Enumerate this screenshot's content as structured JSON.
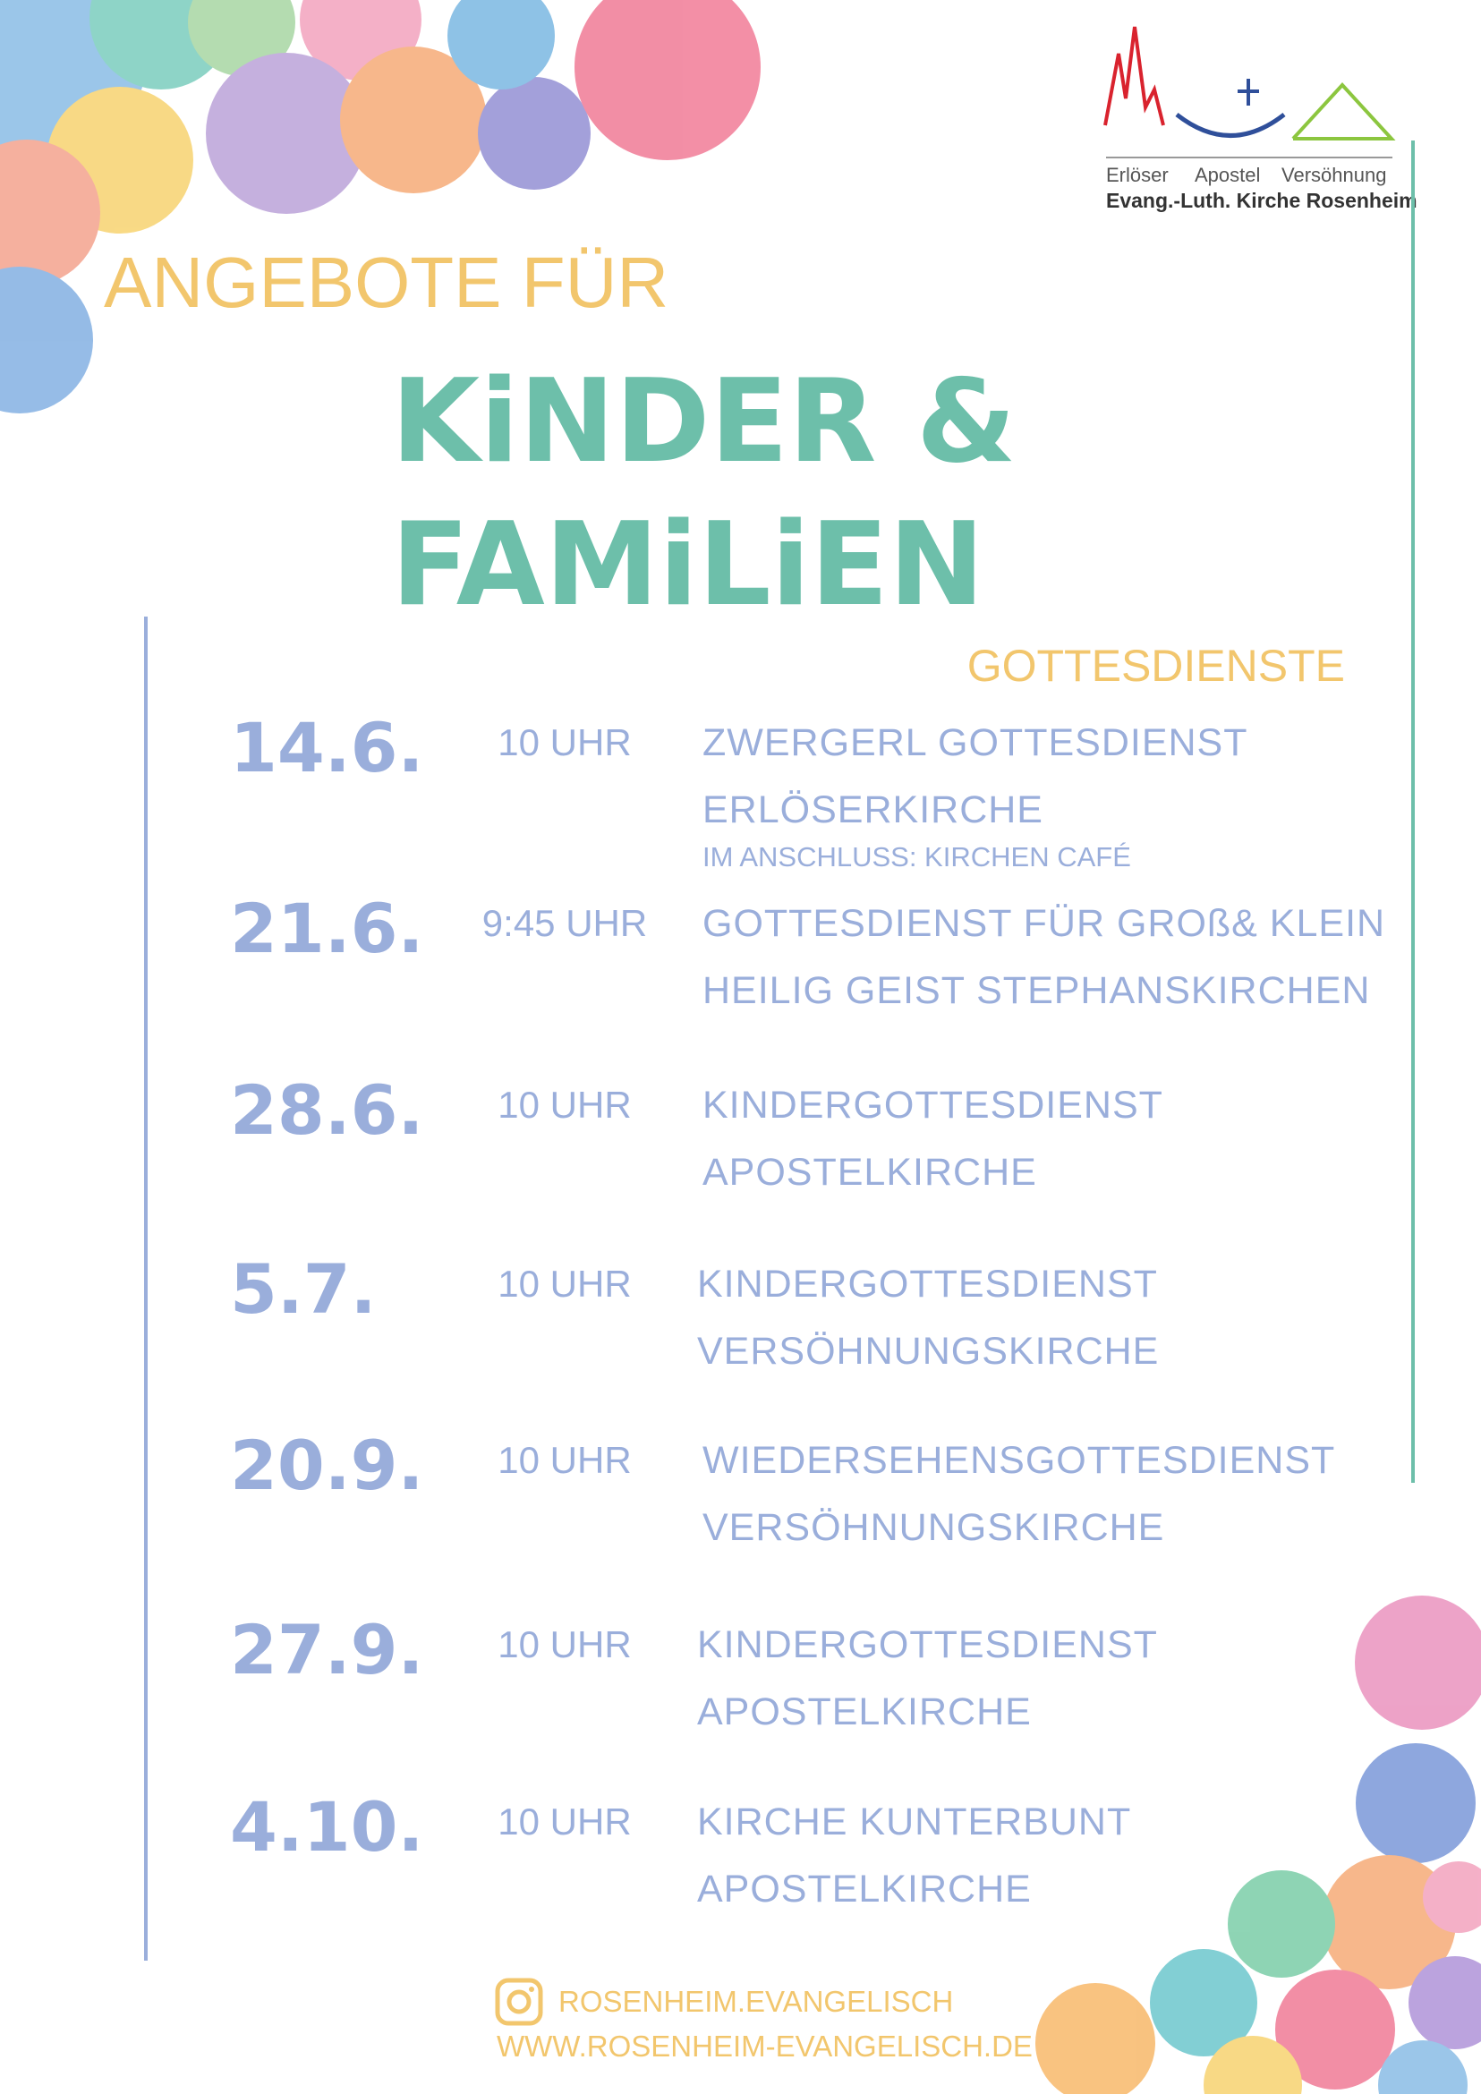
{
  "logo": {
    "churches": [
      "Erlöser",
      "Apostel",
      "Versöhnung"
    ],
    "subtitle": "Evang.-Luth. Kirche Rosenheim"
  },
  "header": {
    "kicker": "ANGEBOTE FÜR",
    "title_lines": [
      "KiNDER &",
      "FAMiLiEN"
    ],
    "section": "GOTTESDIENSTE"
  },
  "events": [
    {
      "date": "14.6.",
      "time": "10 UHR",
      "title": "ZWERGERL GOTTESDIENST",
      "place": "ERLÖSERKIRCHE",
      "note": "IM ANSCHLUSS: KIRCHEN CAFÉ"
    },
    {
      "date": "21.6.",
      "time": "9:45 UHR",
      "title": "GOTTESDIENST FÜR GROß& KLEIN",
      "place": "HEILIG GEIST STEPHANSKIRCHEN"
    },
    {
      "date": "28.6.",
      "time": "10 UHR",
      "title": "KINDERGOTTESDIENST",
      "place": "APOSTELKIRCHE"
    },
    {
      "date": "5.7.",
      "time": "10 UHR",
      "title": "KINDERGOTTESDIENST",
      "place": "VERSÖHNUNGSKIRCHE"
    },
    {
      "date": "20.9.",
      "time": "10 UHR",
      "title": "WIEDERSEHENSGOTTESDIENST",
      "place": "VERSÖHNUNGSKIRCHE"
    },
    {
      "date": "27.9.",
      "time": "10 UHR",
      "title": "KINDERGOTTESDIENST",
      "place": "APOSTELKIRCHE"
    },
    {
      "date": "4.10.",
      "time": "10 UHR",
      "title": "KIRCHE KUNTERBUNT",
      "place": "APOSTELKIRCHE"
    }
  ],
  "footer": {
    "instagram": "ROSENHEIM.EVANGELISCH",
    "website": "WWW.ROSENHEIM-EVANGELISCH.DE"
  }
}
